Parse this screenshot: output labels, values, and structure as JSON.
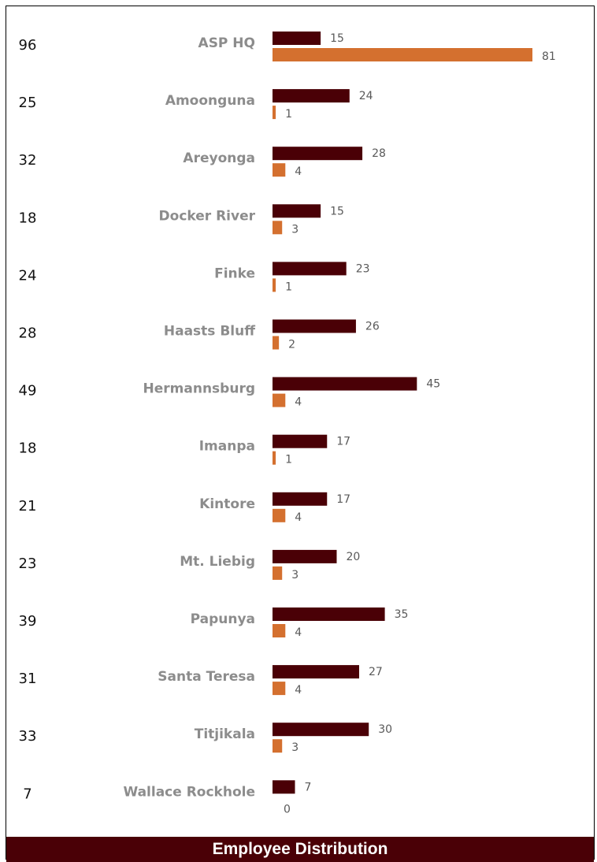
{
  "chart_data": {
    "type": "bar",
    "orientation": "horizontal",
    "categories": [
      "ASP HQ",
      "Amoonguna",
      "Areyonga",
      "Docker River",
      "Finke",
      "Haasts Bluff",
      "Hermannsburg",
      "Imanpa",
      "Kintore",
      "Mt. Liebig",
      "Papunya",
      "Santa Teresa",
      "Titjikala",
      "Wallace Rockhole"
    ],
    "totals": [
      "96",
      "25",
      "32",
      "18",
      "24",
      "28",
      "49",
      "18",
      "21",
      "23",
      "39",
      "31",
      "33",
      "7"
    ],
    "series": [
      {
        "values": [
          15,
          24,
          28,
          15,
          23,
          26,
          45,
          17,
          17,
          20,
          35,
          27,
          30,
          7
        ],
        "color": "#4a0006"
      },
      {
        "values": [
          81,
          1,
          4,
          3,
          1,
          2,
          4,
          1,
          4,
          3,
          4,
          4,
          3,
          0
        ],
        "color": "#d4702f"
      }
    ],
    "grid": false,
    "legend": "none"
  },
  "footer": {
    "title": "Employee Distribution"
  }
}
